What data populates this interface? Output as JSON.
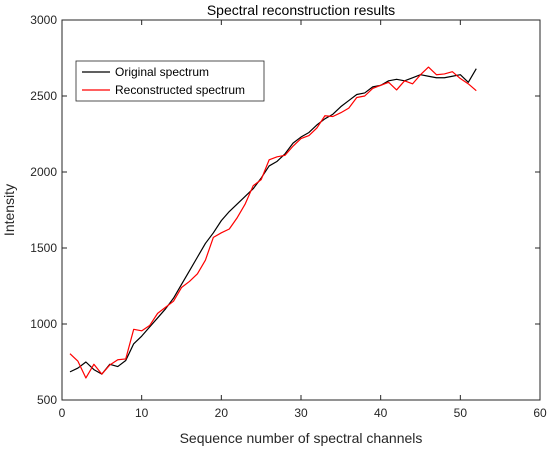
{
  "chart_data": {
    "type": "line",
    "title": "Spectral reconstruction results",
    "xlabel": "Sequence number of spectral channels",
    "ylabel": "Intensity",
    "xlim": [
      0,
      60
    ],
    "ylim": [
      500,
      3000
    ],
    "xticks": [
      0,
      10,
      20,
      30,
      40,
      50,
      60
    ],
    "yticks": [
      500,
      1000,
      1500,
      2000,
      2500,
      3000
    ],
    "grid": false,
    "legend_position": "top-left",
    "x": [
      1,
      2,
      3,
      4,
      5,
      6,
      7,
      8,
      9,
      10,
      11,
      12,
      13,
      14,
      15,
      16,
      17,
      18,
      19,
      20,
      21,
      22,
      23,
      24,
      25,
      26,
      27,
      28,
      29,
      30,
      31,
      32,
      33,
      34,
      35,
      36,
      37,
      38,
      39,
      40,
      41,
      42,
      43,
      44,
      45,
      46,
      47,
      48,
      49,
      50,
      51,
      52
    ],
    "series": [
      {
        "name": "Original spectrum",
        "color": "#000000",
        "values": [
          685,
          710,
          750,
          700,
          670,
          735,
          720,
          760,
          870,
          920,
          980,
          1040,
          1100,
          1170,
          1260,
          1350,
          1440,
          1530,
          1600,
          1680,
          1740,
          1790,
          1840,
          1890,
          1960,
          2040,
          2070,
          2120,
          2190,
          2230,
          2260,
          2310,
          2350,
          2380,
          2430,
          2470,
          2510,
          2520,
          2560,
          2570,
          2600,
          2610,
          2600,
          2620,
          2640,
          2630,
          2620,
          2620,
          2630,
          2640,
          2590,
          2680
        ],
        "width": 1.2
      },
      {
        "name": "Reconstructed spectrum",
        "color": "#ff0000",
        "values": [
          805,
          755,
          645,
          735,
          670,
          730,
          765,
          770,
          965,
          955,
          990,
          1070,
          1110,
          1150,
          1240,
          1280,
          1330,
          1420,
          1570,
          1600,
          1625,
          1700,
          1790,
          1910,
          1950,
          2080,
          2100,
          2110,
          2170,
          2220,
          2240,
          2290,
          2370,
          2365,
          2390,
          2420,
          2490,
          2500,
          2550,
          2570,
          2590,
          2540,
          2600,
          2580,
          2640,
          2690,
          2640,
          2645,
          2660,
          2615,
          2580,
          2535
        ],
        "width": 1.2
      }
    ]
  }
}
